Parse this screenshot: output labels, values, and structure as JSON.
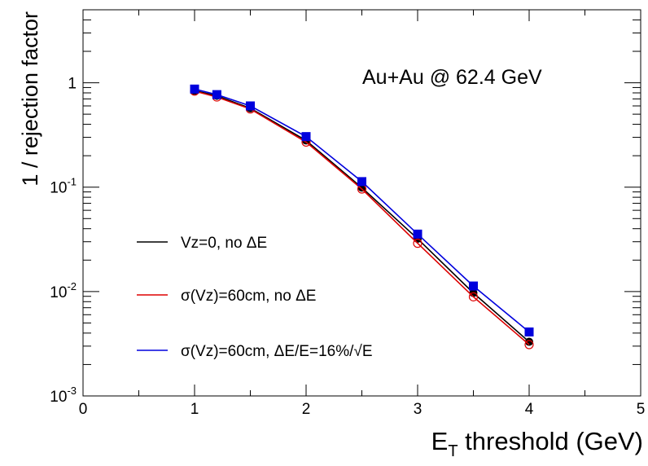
{
  "chart_data": {
    "type": "line",
    "annotation": "Au+Au @ 62.4 GeV",
    "xlabel": {
      "main": "E",
      "sub": "T",
      "rest": " threshold (GeV)"
    },
    "ylabel": "1 / rejection factor",
    "xlim": [
      0,
      5
    ],
    "ylim": [
      0.001,
      5
    ],
    "yscale": "log",
    "grid": false,
    "legend_position": "left-middle",
    "x_ticks": [
      "0",
      "1",
      "2",
      "3",
      "4",
      "5"
    ],
    "y_ticks": [
      {
        "value": 0.001,
        "base": "10",
        "exp": "-3"
      },
      {
        "value": 0.01,
        "base": "10",
        "exp": "-2"
      },
      {
        "value": 0.1,
        "base": "10",
        "exp": "-1"
      },
      {
        "value": 1,
        "base": "1",
        "exp": ""
      }
    ],
    "x": [
      1.0,
      1.2,
      1.5,
      2.0,
      2.5,
      3.0,
      3.5,
      4.0
    ],
    "series": [
      {
        "name": "Vz=0, no ΔE",
        "color": "#000000",
        "marker": "filled-circle",
        "values": [
          0.84,
          0.75,
          0.57,
          0.28,
          0.099,
          0.032,
          0.0097,
          0.0033
        ]
      },
      {
        "name": "σ(Vz)=60cm, no ΔE",
        "color": "#dd0000",
        "marker": "open-circle",
        "values": [
          0.83,
          0.73,
          0.56,
          0.27,
          0.096,
          0.029,
          0.0089,
          0.0031
        ]
      },
      {
        "name": "σ(Vz)=60cm, ΔE/E=16%/√E",
        "color": "#0000dd",
        "marker": "filled-square",
        "values": [
          0.87,
          0.77,
          0.6,
          0.305,
          0.113,
          0.0355,
          0.0113,
          0.0041
        ]
      }
    ]
  }
}
